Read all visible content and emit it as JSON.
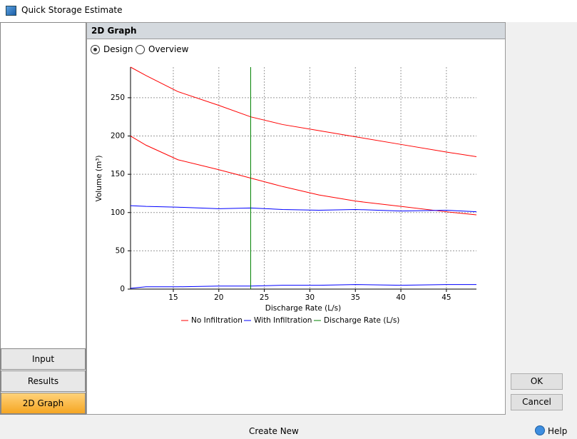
{
  "window": {
    "title": "Quick Storage Estimate"
  },
  "sidebar": {
    "tabs": [
      "Input",
      "Results",
      "2D Graph"
    ],
    "active": 2
  },
  "panel": {
    "header": "2D Graph",
    "options": [
      "Design",
      "Overview"
    ],
    "selected": 0
  },
  "buttons": {
    "ok": "OK",
    "cancel": "Cancel"
  },
  "footer": {
    "create": "Create New",
    "help": "Help"
  },
  "chart_data": {
    "type": "line",
    "x_label": "Discharge Rate (L/s)",
    "y_label": "Volume (m³)",
    "x": [
      10.3,
      12,
      15.5,
      20,
      23.5,
      27,
      31,
      35,
      40,
      45,
      48.3
    ],
    "series": [
      {
        "name": "No Infiltration",
        "color": "#ff0000",
        "values": [
          [
            290,
            279,
            258,
            240,
            225,
            215,
            207,
            199,
            189,
            179,
            173
          ],
          [
            200,
            188,
            169,
            156,
            145,
            134,
            123,
            115,
            108,
            101,
            97
          ]
        ]
      },
      {
        "name": "With Infiltration",
        "color": "#0000ff",
        "values": [
          [
            109,
            108,
            107,
            105,
            106,
            104,
            103,
            104,
            102,
            103,
            101
          ],
          [
            1,
            3,
            3,
            4,
            4,
            5,
            5,
            6,
            5,
            6,
            6
          ]
        ]
      },
      {
        "name": "Discharge Rate (L/s)",
        "color": "#008000",
        "x_value": 23.5
      }
    ],
    "xlim": [
      10.3,
      48.3
    ],
    "ylim": [
      0,
      290
    ],
    "xticks": [
      15,
      20,
      25,
      30,
      35,
      40,
      45
    ],
    "yticks": [
      0,
      50,
      100,
      150,
      200,
      250
    ],
    "grid": true
  }
}
